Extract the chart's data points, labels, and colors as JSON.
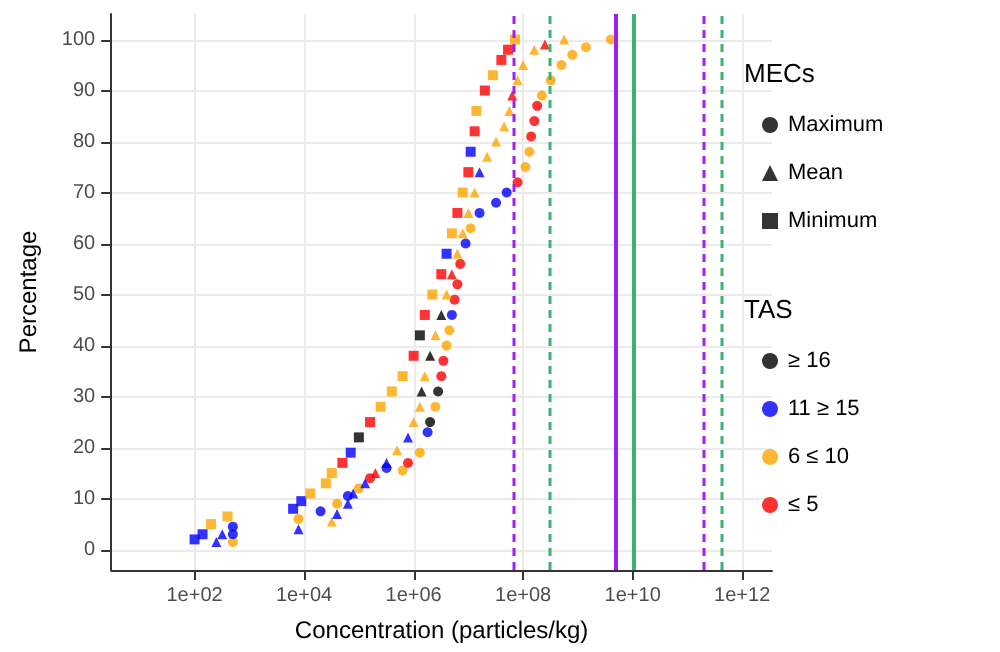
{
  "chart_data": {
    "type": "scatter",
    "xlabel": "Concentration (particles/kg)",
    "ylabel": "Percentage",
    "legend_title": [
      "MECs",
      "TAS"
    ],
    "legend": "right",
    "grid": true,
    "log": "x",
    "xlim": [
      3,
      3500000000000.0
    ],
    "xticks": [
      {
        "value": 100,
        "label": "1e+02"
      },
      {
        "value": 10000,
        "label": "1e+04"
      },
      {
        "value": 1000000,
        "label": "1e+06"
      },
      {
        "value": 100000000,
        "label": "1e+08"
      },
      {
        "value": 10000000000,
        "label": "1e+10"
      },
      {
        "value": 1000000000000,
        "label": "1e+12"
      }
    ],
    "ylim": [
      -4,
      105
    ],
    "yticks": [
      0,
      10,
      20,
      30,
      40,
      50,
      60,
      70,
      80,
      90,
      100
    ],
    "series": [
      {
        "name": "Maximum",
        "marker": "circle",
        "color": "#000000",
        "x": [
          500.0,
          500.0,
          500.0,
          7900.0,
          20000.0,
          40000.0,
          63000.0,
          100000.0,
          160000.0,
          320000.0,
          630000.0,
          790000.0,
          1300000.0,
          1800000.0,
          2000000.0,
          2500000.0,
          2800000.0,
          3200000.0,
          3500000.0,
          4000000.0,
          4500000.0,
          5000000.0,
          5600000.0,
          6300000.0,
          7100000.0,
          8900000.0,
          11000000.0,
          16000000.0,
          32000000.0,
          50000000.0,
          79000000.0,
          110000000.0,
          130000000.0,
          140000000.0,
          160000000.0,
          180000000.0,
          220000000.0,
          320000000.0,
          500000000.0,
          790000000.0,
          1400000000.0,
          4000000000.0
        ],
        "values": [
          1.5,
          3,
          4.5,
          6,
          7.5,
          9,
          10.5,
          12,
          14,
          16,
          15.5,
          17,
          19,
          23,
          25,
          28,
          31,
          34,
          37,
          40,
          43,
          46,
          49,
          52,
          56,
          60,
          63,
          66,
          68,
          70,
          72,
          75,
          78,
          81,
          84,
          87,
          89,
          92,
          95,
          97,
          98.5,
          100
        ],
        "colors": [
          "#ffa500",
          "#0000ff",
          "#0000ff",
          "#ffa500",
          "#0000ff",
          "#ffa500",
          "#0000ff",
          "#ffa500",
          "#ff0000",
          "#0000ff",
          "#ffa500",
          "#ff0000",
          "#ffa500",
          "#0000ff",
          "#000000",
          "#ffa500",
          "#000000",
          "#ff0000",
          "#ff0000",
          "#ffa500",
          "#ffa500",
          "#0000ff",
          "#ff0000",
          "#ff0000",
          "#ff0000",
          "#0000ff",
          "#ffa500",
          "#0000ff",
          "#0000ff",
          "#0000ff",
          "#ff0000",
          "#ffa500",
          "#ffa500",
          "#ff0000",
          "#ff0000",
          "#ff0000",
          "#ffa500",
          "#ffa500",
          "#ffa500",
          "#ffa500",
          "#ffa500",
          "#ffa500"
        ]
      },
      {
        "name": "Mean",
        "marker": "triangle",
        "color": "#000000",
        "x": [
          250.0,
          320.0,
          7900.0,
          32000.0,
          40000.0,
          63000.0,
          79000.0,
          130000.0,
          200000.0,
          320000.0,
          500000.0,
          790000.0,
          1000000.0,
          1300000.0,
          1400000.0,
          1600000.0,
          2000000.0,
          2500000.0,
          3200000.0,
          4000000.0,
          5000000.0,
          6300000.0,
          7900000.0,
          10000000.0,
          13000000.0,
          16000000.0,
          22000000.0,
          32000000.0,
          45000000.0,
          56000000.0,
          63000000.0,
          79000000.0,
          100000000.0,
          160000000.0,
          250000000.0,
          560000000.0
        ],
        "values": [
          1.5,
          3,
          4,
          5.5,
          7,
          9,
          11,
          13,
          15,
          17,
          19.5,
          22,
          25,
          28,
          31,
          34,
          38,
          42,
          46,
          50,
          54,
          58,
          62,
          66,
          70,
          74,
          77,
          80,
          83,
          86,
          89,
          92,
          95,
          98,
          99,
          100
        ],
        "colors": [
          "#0000ff",
          "#0000ff",
          "#0000ff",
          "#ffa500",
          "#0000ff",
          "#0000ff",
          "#0000ff",
          "#0000ff",
          "#ff0000",
          "#0000ff",
          "#ffa500",
          "#0000ff",
          "#ffa500",
          "#ffa500",
          "#000000",
          "#ffa500",
          "#000000",
          "#ffa500",
          "#000000",
          "#ffa500",
          "#ff0000",
          "#ffa500",
          "#ffa500",
          "#ffa500",
          "#ffa500",
          "#0000ff",
          "#ffa500",
          "#ffa500",
          "#ffa500",
          "#ffa500",
          "#ff0000",
          "#ffa500",
          "#ffa500",
          "#ffa500",
          "#ff0000",
          "#ffa500"
        ]
      },
      {
        "name": "Minimum",
        "marker": "square",
        "color": "#000000",
        "x": [
          100.0,
          140.0,
          200.0,
          400.0,
          6300.0,
          8900.0,
          13000.0,
          25000.0,
          32000.0,
          50000.0,
          71000.0,
          100000.0,
          160000.0,
          250000.0,
          400000.0,
          630000.0,
          1000000.0,
          1300000.0,
          1600000.0,
          2200000.0,
          3200000.0,
          4000000.0,
          5000000.0,
          6300000.0,
          7900000.0,
          10000000.0,
          11000000.0,
          13000000.0,
          14000000.0,
          20000000.0,
          28000000.0,
          40000000.0,
          53000000.0,
          71000000.0
        ],
        "values": [
          2,
          3,
          5,
          6.5,
          8,
          9.5,
          11,
          13,
          15,
          17,
          19,
          22,
          25,
          28,
          31,
          34,
          38,
          42,
          46,
          50,
          54,
          58,
          62,
          66,
          70,
          74,
          78,
          82,
          86,
          90,
          93,
          96,
          98,
          100
        ],
        "colors": [
          "#0000ff",
          "#0000ff",
          "#ffa500",
          "#ffa500",
          "#0000ff",
          "#0000ff",
          "#ffa500",
          "#ffa500",
          "#ffa500",
          "#ff0000",
          "#0000ff",
          "#000000",
          "#ff0000",
          "#ffa500",
          "#ffa500",
          "#ffa500",
          "#ff0000",
          "#000000",
          "#ff0000",
          "#ffa500",
          "#ff0000",
          "#0000ff",
          "#ffa500",
          "#ff0000",
          "#ffa500",
          "#ff0000",
          "#0000ff",
          "#ff0000",
          "#ffa500",
          "#ff0000",
          "#ffa500",
          "#ff0000",
          "#ff0000",
          "#ffa500"
        ]
      },
      {
        "name": "≥ 16",
        "marker": "circle",
        "color": "#000000"
      },
      {
        "name": "11 ≥ 15",
        "marker": "circle",
        "color": "#0000ff"
      },
      {
        "name": "6 ≤ 10",
        "marker": "circle",
        "color": "#ffa500"
      },
      {
        "name": "≤ 5",
        "marker": "circle",
        "color": "#ff0000"
      }
    ],
    "ref_lines": [
      {
        "axis": "x",
        "value": 65000000.0,
        "color": "#a020f0",
        "line_style": "dashed"
      },
      {
        "axis": "x",
        "value": 310000000.0,
        "color": "#3cb371",
        "line_style": "dashed"
      },
      {
        "axis": "x",
        "value": 4800000000.0,
        "color": "#a020f0",
        "line_style": "solid"
      },
      {
        "axis": "x",
        "value": 10000000000.0,
        "color": "#3cb371",
        "line_style": "solid"
      },
      {
        "axis": "x",
        "value": 200000000000.0,
        "color": "#a020f0",
        "line_style": "dashed"
      },
      {
        "axis": "x",
        "value": 410000000000.0,
        "color": "#3cb371",
        "line_style": "dashed"
      }
    ]
  }
}
